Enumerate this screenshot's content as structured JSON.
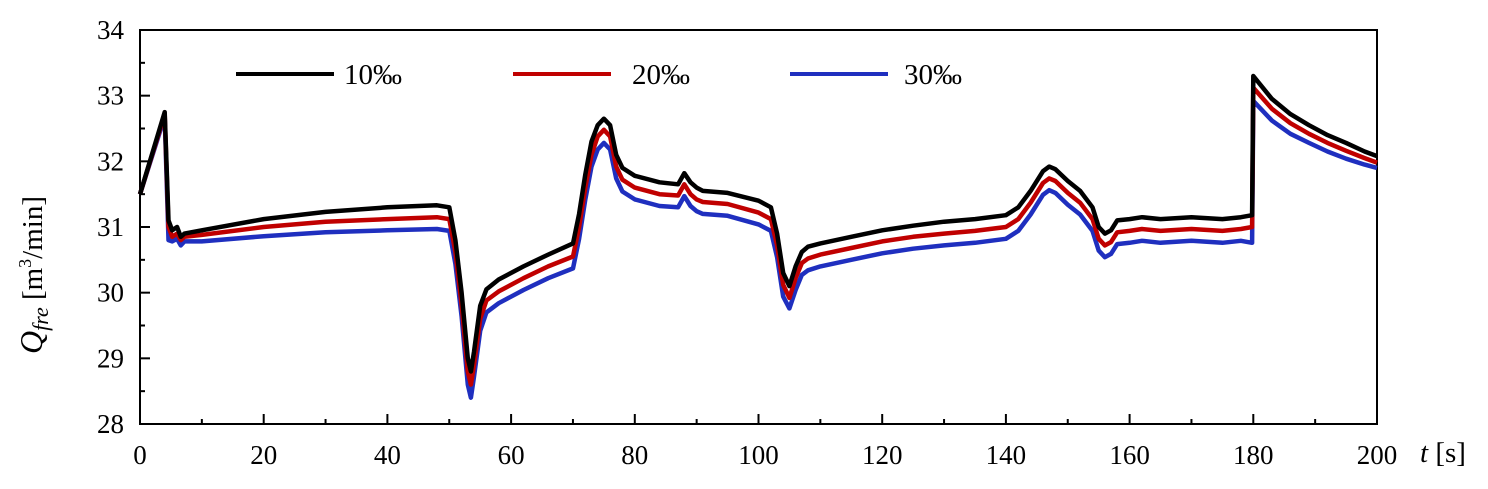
{
  "chart_data": {
    "type": "line",
    "xlabel": {
      "symbol": "t",
      "unit": "[s]"
    },
    "ylabel": {
      "symbol": "Q",
      "subscript": "fre",
      "unit_pre": "[m",
      "unit_sup": "3",
      "unit_post": "/min]"
    },
    "xlim": [
      0,
      200
    ],
    "ylim": [
      28,
      34
    ],
    "xticks": [
      0,
      20,
      40,
      60,
      80,
      100,
      120,
      140,
      160,
      180,
      200
    ],
    "yticks": [
      28,
      29,
      30,
      31,
      32,
      33,
      34
    ],
    "grid": false,
    "legend_position": "top",
    "series": [
      {
        "name": "10‰",
        "color": "#000000",
        "x": [
          0,
          4,
          4.6,
          5.2,
          6,
          6.6,
          7.2,
          10,
          20,
          30,
          40,
          48,
          50,
          51,
          52,
          53,
          53.5,
          54,
          55,
          56,
          58,
          62,
          66,
          70,
          71,
          72,
          73,
          74,
          75,
          76,
          77,
          78,
          80,
          84,
          87,
          88,
          89,
          90,
          91,
          95,
          100,
          102,
          103,
          104,
          105,
          106,
          107,
          108,
          110,
          115,
          120,
          125,
          130,
          135,
          140,
          142,
          144,
          146,
          147,
          148,
          150,
          152,
          154,
          155,
          156,
          157,
          158,
          160,
          162,
          165,
          170,
          175,
          178,
          179.8,
          180,
          183,
          186,
          189,
          192,
          195,
          198,
          200
        ],
        "y": [
          31.5,
          32.75,
          31.1,
          30.95,
          31.0,
          30.85,
          30.9,
          30.95,
          31.12,
          31.23,
          31.3,
          31.33,
          31.3,
          30.8,
          30.0,
          29.0,
          28.8,
          29.1,
          29.8,
          30.05,
          30.2,
          30.4,
          30.58,
          30.75,
          31.2,
          31.8,
          32.3,
          32.55,
          32.65,
          32.55,
          32.1,
          31.9,
          31.78,
          31.68,
          31.65,
          31.82,
          31.68,
          31.6,
          31.55,
          31.52,
          31.4,
          31.3,
          30.9,
          30.3,
          30.1,
          30.4,
          30.62,
          30.7,
          30.75,
          30.85,
          30.95,
          31.02,
          31.08,
          31.12,
          31.18,
          31.3,
          31.55,
          31.85,
          31.92,
          31.88,
          31.7,
          31.55,
          31.3,
          31.0,
          30.9,
          30.95,
          31.1,
          31.12,
          31.15,
          31.12,
          31.15,
          31.12,
          31.15,
          31.18,
          33.3,
          32.95,
          32.72,
          32.55,
          32.4,
          32.28,
          32.15,
          32.08
        ]
      },
      {
        "name": "20‰",
        "color": "#c00000",
        "x": [
          0,
          4,
          4.6,
          5.2,
          6,
          6.6,
          7.2,
          10,
          20,
          30,
          40,
          48,
          50,
          51,
          52,
          53,
          53.5,
          54,
          55,
          56,
          58,
          62,
          66,
          70,
          71,
          72,
          73,
          74,
          75,
          76,
          77,
          78,
          80,
          84,
          87,
          88,
          89,
          90,
          91,
          95,
          100,
          102,
          103,
          104,
          105,
          106,
          107,
          108,
          110,
          115,
          120,
          125,
          130,
          135,
          140,
          142,
          144,
          146,
          147,
          148,
          150,
          152,
          154,
          155,
          156,
          157,
          158,
          160,
          162,
          165,
          170,
          175,
          178,
          179.8,
          180,
          183,
          186,
          189,
          192,
          195,
          198,
          200
        ],
        "y": [
          31.5,
          32.72,
          31.0,
          30.85,
          30.9,
          30.8,
          30.85,
          30.88,
          31.0,
          31.08,
          31.12,
          31.15,
          31.12,
          30.62,
          29.82,
          28.8,
          28.6,
          28.9,
          29.6,
          29.88,
          30.02,
          30.22,
          30.4,
          30.55,
          31.0,
          31.6,
          32.1,
          32.38,
          32.48,
          32.38,
          31.92,
          31.72,
          31.6,
          31.5,
          31.48,
          31.65,
          31.5,
          31.42,
          31.38,
          31.35,
          31.22,
          31.12,
          30.72,
          30.12,
          29.92,
          30.22,
          30.45,
          30.52,
          30.58,
          30.68,
          30.78,
          30.85,
          30.9,
          30.94,
          31.0,
          31.12,
          31.37,
          31.67,
          31.74,
          31.7,
          31.52,
          31.37,
          31.12,
          30.82,
          30.72,
          30.77,
          30.92,
          30.94,
          30.97,
          30.94,
          30.97,
          30.94,
          30.97,
          31.0,
          33.12,
          32.8,
          32.58,
          32.42,
          32.28,
          32.16,
          32.05,
          31.98
        ]
      },
      {
        "name": "30‰",
        "color": "#1f2fbf",
        "x": [
          0,
          4,
          4.6,
          5.2,
          6,
          6.6,
          7.2,
          10,
          20,
          30,
          40,
          48,
          50,
          51,
          52,
          53,
          53.5,
          54,
          55,
          56,
          58,
          62,
          66,
          70,
          71,
          72,
          73,
          74,
          75,
          76,
          77,
          78,
          80,
          84,
          87,
          88,
          89,
          90,
          91,
          95,
          100,
          102,
          103,
          104,
          105,
          106,
          107,
          108,
          110,
          115,
          120,
          125,
          130,
          135,
          140,
          142,
          144,
          146,
          147,
          148,
          150,
          152,
          154,
          155,
          156,
          157,
          158,
          160,
          162,
          165,
          170,
          175,
          178,
          179.8,
          180,
          183,
          186,
          189,
          192,
          195,
          198,
          200
        ],
        "y": [
          31.5,
          32.68,
          30.8,
          30.78,
          30.82,
          30.72,
          30.78,
          30.78,
          30.86,
          30.92,
          30.95,
          30.97,
          30.94,
          30.44,
          29.64,
          28.6,
          28.4,
          28.72,
          29.42,
          29.7,
          29.84,
          30.04,
          30.22,
          30.37,
          30.82,
          31.42,
          31.92,
          32.18,
          32.28,
          32.18,
          31.74,
          31.54,
          31.42,
          31.32,
          31.3,
          31.47,
          31.32,
          31.24,
          31.2,
          31.17,
          31.04,
          30.94,
          30.54,
          29.94,
          29.76,
          30.04,
          30.27,
          30.34,
          30.4,
          30.5,
          30.6,
          30.67,
          30.72,
          30.76,
          30.82,
          30.94,
          31.19,
          31.49,
          31.56,
          31.52,
          31.34,
          31.19,
          30.94,
          30.64,
          30.54,
          30.59,
          30.74,
          30.76,
          30.79,
          30.76,
          30.79,
          30.76,
          30.79,
          30.76,
          32.92,
          32.62,
          32.42,
          32.28,
          32.15,
          32.04,
          31.95,
          31.9
        ]
      }
    ]
  }
}
